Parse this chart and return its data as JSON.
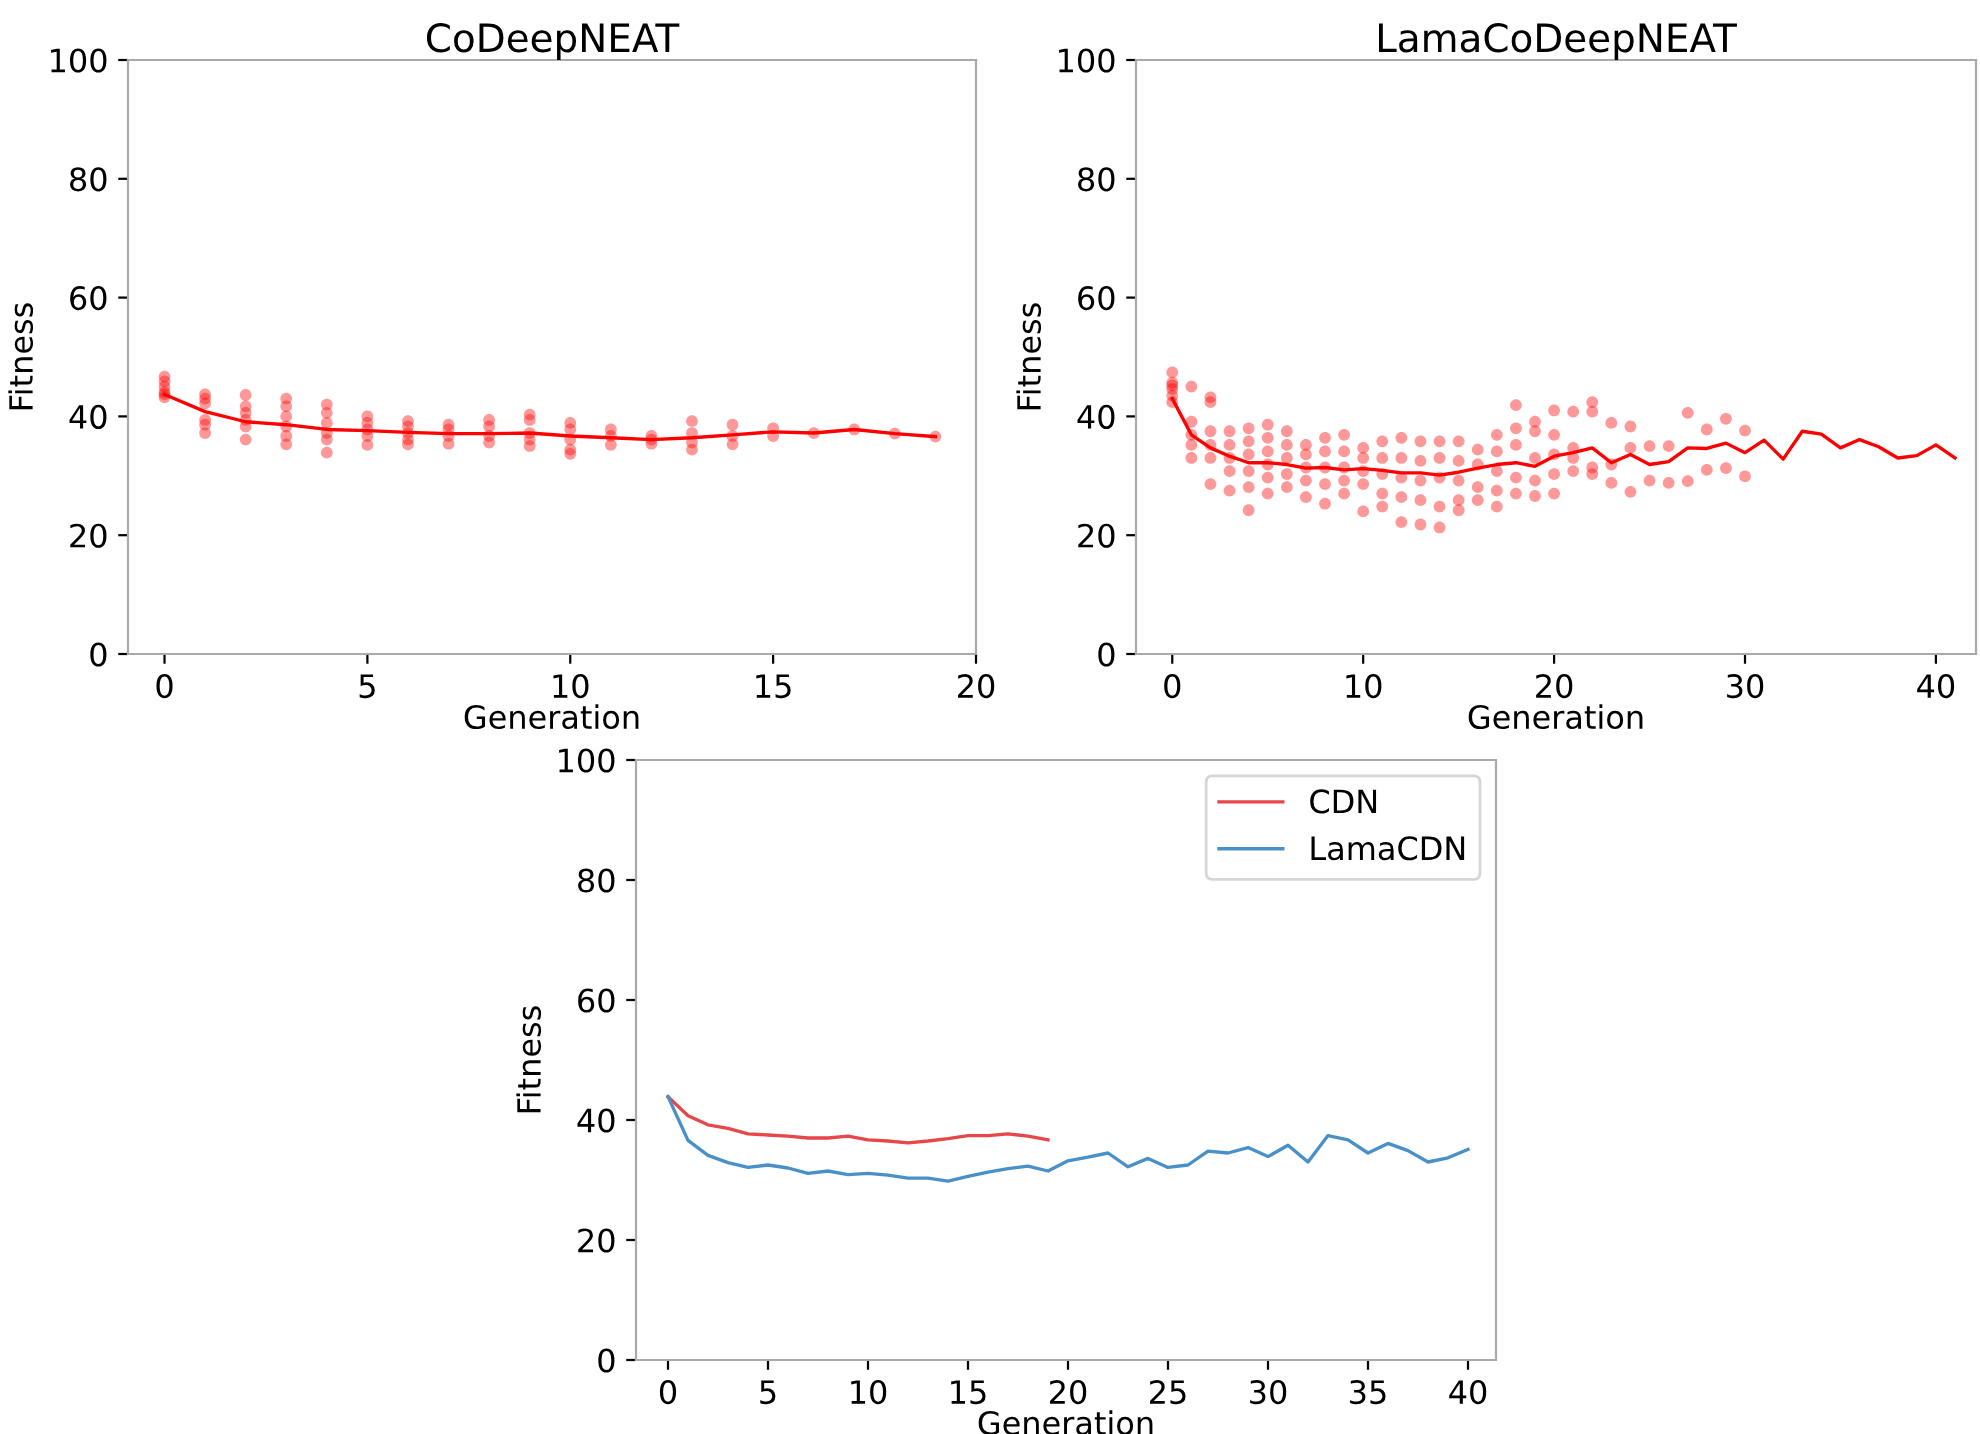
{
  "chart_data": [
    {
      "type": "scatter",
      "title": "CoDeepNEAT",
      "xlabel": "Generation",
      "ylabel": "Fitness",
      "xlim": [
        -0.9,
        20
      ],
      "xticks": [
        0,
        5,
        10,
        15,
        20
      ],
      "ylim": [
        0,
        100
      ],
      "yticks": [
        0,
        20,
        40,
        60,
        80,
        100
      ],
      "grid": false,
      "legend": false,
      "series": [
        {
          "type": "scatter",
          "color": "#ff0000",
          "marker": "circle",
          "x": [
            0,
            0,
            0,
            0,
            0,
            0,
            1,
            1,
            1,
            1,
            1,
            1,
            2,
            2,
            2,
            2,
            2,
            2,
            3,
            3,
            3,
            3,
            3,
            3,
            4,
            4,
            4,
            4,
            4,
            4,
            5,
            5,
            5,
            5,
            5,
            6,
            6,
            6,
            6,
            6,
            7,
            7,
            7,
            7,
            8,
            8,
            8,
            8,
            9,
            9,
            9,
            9,
            9,
            10,
            10,
            10,
            10,
            10,
            11,
            11,
            11,
            12,
            12,
            12,
            13,
            13,
            13,
            13,
            14,
            14,
            14,
            15,
            15,
            16,
            17,
            18,
            19
          ],
          "values": [
            46.7,
            45.9,
            45,
            44.1,
            43.7,
            43.2,
            43.7,
            43,
            42.2,
            39.4,
            38.6,
            37.2,
            43.6,
            41.7,
            40.6,
            39.4,
            38.3,
            36.1,
            43,
            41.7,
            40,
            38.3,
            36.7,
            35.3,
            42,
            40.6,
            38.9,
            37.2,
            36.1,
            33.9,
            40,
            38.9,
            37.8,
            36.7,
            35.2,
            39.2,
            38.3,
            37.2,
            36.1,
            35.3,
            38.6,
            37.8,
            36.7,
            35.4,
            39.4,
            38.3,
            36.7,
            35.6,
            40.3,
            39.4,
            37.2,
            36.1,
            35,
            38.9,
            37.8,
            36.1,
            34.4,
            33.7,
            37.8,
            36.7,
            35.2,
            36.7,
            36.1,
            35.4,
            39.2,
            37.2,
            35.6,
            34.4,
            38.6,
            36.7,
            35.3,
            38,
            36.7,
            37.2,
            37.8,
            37.1,
            36.6
          ]
        },
        {
          "type": "line",
          "color": "#ff0000",
          "marker": "none",
          "line_style": "solid",
          "x": [
            0,
            1,
            2,
            3,
            4,
            5,
            6,
            7,
            8,
            9,
            10,
            11,
            12,
            13,
            14,
            15,
            16,
            17,
            18,
            19
          ],
          "values": [
            43.7,
            40.8,
            39.1,
            38.6,
            37.8,
            37.6,
            37.3,
            37.1,
            37.1,
            37.2,
            36.7,
            36.4,
            36.1,
            36.4,
            36.9,
            37.4,
            37.2,
            37.8,
            37.1,
            36.6
          ]
        }
      ]
    },
    {
      "type": "scatter",
      "title": "LamaCoDeepNEAT",
      "xlabel": "Generation",
      "ylabel": "Fitness",
      "xlim": [
        -1.9,
        42.1
      ],
      "xticks": [
        0,
        10,
        20,
        30,
        40
      ],
      "ylim": [
        0,
        100
      ],
      "yticks": [
        0,
        20,
        40,
        60,
        80,
        100
      ],
      "grid": false,
      "legend": false,
      "series": [
        {
          "type": "scatter",
          "color": "#ff0000",
          "marker": "circle",
          "x": [
            0,
            0,
            0,
            0,
            0,
            0,
            1,
            1,
            1,
            1,
            1,
            2,
            2,
            2,
            2,
            2,
            2,
            3,
            3,
            3,
            3,
            3,
            4,
            4,
            4,
            4,
            4,
            4,
            5,
            5,
            5,
            5,
            5,
            5,
            6,
            6,
            6,
            6,
            6,
            7,
            7,
            7,
            7,
            7,
            8,
            8,
            8,
            8,
            8,
            9,
            9,
            9,
            9,
            9,
            10,
            10,
            10,
            10,
            10,
            11,
            11,
            11,
            11,
            11,
            12,
            12,
            12,
            12,
            12,
            13,
            13,
            13,
            13,
            13,
            14,
            14,
            14,
            14,
            14,
            15,
            15,
            15,
            15,
            15,
            16,
            16,
            16,
            16,
            17,
            17,
            17,
            17,
            17,
            18,
            18,
            18,
            18,
            18,
            19,
            19,
            19,
            19,
            19,
            20,
            20,
            20,
            20,
            20,
            21,
            21,
            21,
            21,
            22,
            22,
            22,
            22,
            23,
            23,
            23,
            24,
            24,
            24,
            25,
            25,
            26,
            26,
            27,
            27,
            28,
            28,
            29,
            29,
            30,
            30
          ],
          "values": [
            47.4,
            45.7,
            45.2,
            44.6,
            43.5,
            42.4,
            45,
            39.1,
            36.9,
            35.2,
            33,
            43.2,
            42.4,
            37.5,
            35.2,
            33,
            28.6,
            37.5,
            35.2,
            33,
            30.8,
            27.5,
            38,
            35.8,
            33.6,
            30.8,
            28.1,
            24.2,
            38.6,
            36.4,
            34.1,
            31.9,
            29.7,
            27,
            37.5,
            35.2,
            33,
            30.3,
            28.1,
            35.2,
            33.6,
            31.4,
            29.2,
            26.4,
            36.4,
            34.1,
            31.4,
            28.6,
            25.3,
            36.9,
            34.1,
            31.4,
            29.2,
            27,
            34.7,
            33,
            30.8,
            28.6,
            24,
            35.8,
            33,
            30.3,
            27,
            24.8,
            36.4,
            33,
            29.7,
            26.4,
            22.2,
            35.8,
            32.5,
            29.2,
            25.9,
            21.8,
            35.8,
            33,
            29.7,
            24.8,
            21.3,
            35.8,
            32.5,
            29.2,
            25.9,
            24.2,
            34.4,
            31.9,
            28.1,
            25.9,
            36.9,
            34.1,
            30.8,
            27.5,
            24.8,
            41.9,
            38,
            35.2,
            29.7,
            27,
            39.1,
            37.5,
            33,
            29.2,
            26.6,
            41,
            36.9,
            33.6,
            30.3,
            27,
            40.8,
            34.7,
            33,
            30.8,
            42.4,
            40.8,
            31.4,
            30.3,
            38.9,
            31.9,
            28.8,
            38.3,
            34.7,
            27.3,
            35,
            29.2,
            35,
            28.8,
            40.6,
            29.1,
            37.8,
            31,
            39.6,
            31.3,
            37.6,
            29.9
          ]
        },
        {
          "type": "line",
          "color": "#ff0000",
          "marker": "none",
          "line_style": "solid",
          "x": [
            0,
            1,
            2,
            3,
            4,
            5,
            6,
            7,
            8,
            9,
            10,
            11,
            12,
            13,
            14,
            15,
            16,
            17,
            18,
            19,
            20,
            21,
            22,
            23,
            24,
            25,
            26,
            27,
            28,
            29,
            30,
            31,
            32,
            33,
            34,
            35,
            36,
            37,
            38,
            39,
            40,
            41
          ],
          "values": [
            43,
            36.9,
            34.7,
            33.3,
            32.2,
            32.2,
            31.9,
            31.3,
            31.4,
            31,
            31.2,
            30.9,
            30.5,
            30.5,
            30.1,
            30.6,
            31.3,
            31.9,
            32.2,
            31.6,
            33.3,
            33.9,
            34.7,
            32.2,
            33.6,
            31.9,
            32.4,
            34.7,
            34.6,
            35.5,
            33.9,
            36,
            32.8,
            37.5,
            37,
            34.7,
            36.1,
            34.9,
            33,
            33.4,
            35.2,
            33
          ]
        }
      ]
    },
    {
      "type": "line",
      "xlabel": "Generation",
      "ylabel": "Fitness",
      "xlim": [
        -1.6,
        41.4
      ],
      "xticks": [
        0,
        5,
        10,
        15,
        20,
        25,
        30,
        35,
        40
      ],
      "ylim": [
        0,
        100
      ],
      "yticks": [
        0,
        20,
        40,
        60,
        80,
        100
      ],
      "grid": false,
      "legend": "top right",
      "marker": "none",
      "line_style": "solid",
      "series": [
        {
          "name": "CDN",
          "color": "#e8474a",
          "x": [
            0,
            1,
            2,
            3,
            4,
            5,
            6,
            7,
            8,
            9,
            10,
            11,
            12,
            13,
            14,
            15,
            16,
            17,
            18,
            19
          ],
          "values": [
            43.9,
            40.7,
            39.2,
            38.6,
            37.7,
            37.5,
            37.3,
            37,
            37,
            37.3,
            36.7,
            36.5,
            36.2,
            36.5,
            36.9,
            37.4,
            37.4,
            37.7,
            37.3,
            36.7
          ]
        },
        {
          "name": "LamaCDN",
          "color": "#4a90c8",
          "x": [
            0,
            1,
            2,
            3,
            4,
            5,
            6,
            7,
            8,
            9,
            10,
            11,
            12,
            13,
            14,
            15,
            16,
            17,
            18,
            19,
            20,
            21,
            22,
            23,
            24,
            25,
            26,
            27,
            28,
            29,
            30,
            31,
            32,
            33,
            34,
            35,
            36,
            37,
            38,
            39,
            40
          ],
          "values": [
            43.9,
            36.6,
            34.1,
            32.9,
            32.1,
            32.5,
            32,
            31.1,
            31.5,
            30.9,
            31.1,
            30.8,
            30.3,
            30.3,
            29.8,
            30.6,
            31.3,
            31.9,
            32.3,
            31.5,
            33.2,
            33.8,
            34.5,
            32.2,
            33.6,
            32.1,
            32.5,
            34.8,
            34.5,
            35.4,
            33.9,
            35.8,
            33,
            37.4,
            36.7,
            34.5,
            36.1,
            34.9,
            33,
            33.7,
            35.1
          ]
        }
      ]
    }
  ]
}
